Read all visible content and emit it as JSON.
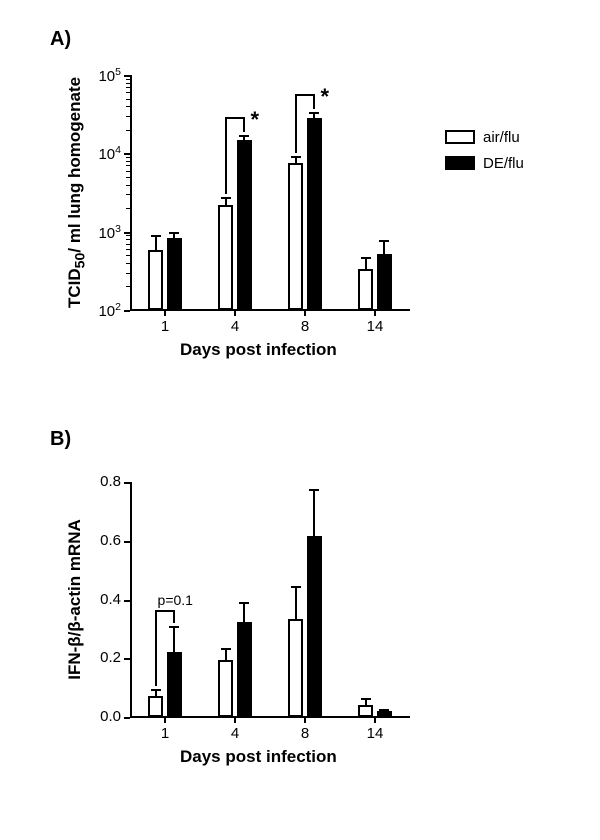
{
  "colors": {
    "background": "#ffffff",
    "axis": "#000000",
    "text": "#000000",
    "air_fill": "#ffffff",
    "air_border": "#000000",
    "de_fill": "#000000",
    "de_border": "#000000",
    "errorbar": "#000000"
  },
  "typography": {
    "panel_label_fontsize": 20,
    "axis_label_fontsize": 17,
    "tick_fontsize": 15,
    "legend_fontsize": 15,
    "sig_fontsize": 22,
    "pval_fontsize": 14
  },
  "panelA": {
    "label": "A)",
    "ylabel_html": "TCID<sub>50</sub>/ ml lung  homogenate",
    "xlabel": "Days post infection",
    "type": "bar",
    "yscale": "log",
    "ylim": [
      100,
      100000
    ],
    "ytick_exponents": [
      2,
      3,
      4,
      5
    ],
    "categories": [
      "1",
      "4",
      "8",
      "14"
    ],
    "bar_width": 0.22,
    "gap_within_pair": 0.05,
    "series": [
      {
        "name": "air/flu",
        "fill": "#ffffff",
        "border": "#000000",
        "values": [
          580,
          2200,
          7500,
          330
        ],
        "errors": [
          320,
          600,
          1800,
          140
        ]
      },
      {
        "name": "DE/flu",
        "fill": "#000000",
        "border": "#000000",
        "values": [
          830,
          15000,
          28000,
          520
        ],
        "errors": [
          170,
          2000,
          6000,
          260
        ]
      }
    ],
    "sig_pairs": [
      {
        "cat_index": 1,
        "label": "*"
      },
      {
        "cat_index": 2,
        "label": "*"
      }
    ],
    "legend": [
      {
        "label": "air/flu",
        "fill": "#ffffff",
        "border": "#000000"
      },
      {
        "label": "DE/flu",
        "fill": "#000000",
        "border": "#000000"
      }
    ]
  },
  "panelB": {
    "label": "B)",
    "ylabel_html": "IFN-&#946;/&#946;-actin mRNA",
    "xlabel": "Days post infection",
    "type": "bar",
    "yscale": "linear",
    "ylim": [
      0,
      0.8
    ],
    "ytick_step": 0.2,
    "yticks": [
      "0.0",
      "0.2",
      "0.4",
      "0.6",
      "0.8"
    ],
    "categories": [
      "1",
      "4",
      "8",
      "14"
    ],
    "bar_width": 0.22,
    "gap_within_pair": 0.05,
    "series": [
      {
        "name": "air/flu",
        "fill": "#ffffff",
        "border": "#000000",
        "values": [
          0.07,
          0.195,
          0.335,
          0.04
        ],
        "errors": [
          0.025,
          0.04,
          0.11,
          0.025
        ]
      },
      {
        "name": "DE/flu",
        "fill": "#000000",
        "border": "#000000",
        "values": [
          0.22,
          0.325,
          0.615,
          0.022
        ],
        "errors": [
          0.09,
          0.065,
          0.16,
          0.005
        ]
      }
    ],
    "pval": {
      "cat_index": 0,
      "label": "p=0.1"
    }
  }
}
